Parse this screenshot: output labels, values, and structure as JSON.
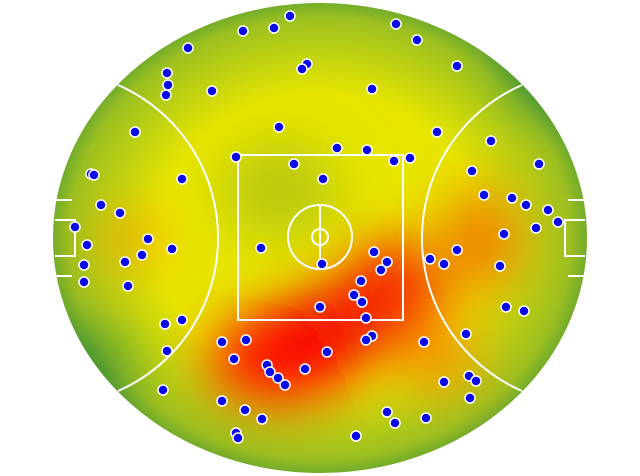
{
  "chart_data": {
    "type": "scatter",
    "xlim": [
      -320,
      320
    ],
    "ylim": [
      -238,
      238
    ],
    "point_color": "#0a0ae6",
    "series": [
      {
        "name": null,
        "x": [
          -30,
          -77,
          -46,
          76,
          97,
          -132,
          -153,
          -13,
          -18,
          -152,
          -154,
          -108,
          52,
          137,
          -185,
          -41,
          117,
          171,
          17,
          47,
          -84,
          -26,
          74,
          90,
          219,
          -229,
          -226,
          -138,
          3,
          152,
          164,
          -219,
          -200,
          192,
          206,
          228,
          238,
          216,
          -245,
          -172,
          -233,
          -148,
          -59,
          184,
          137,
          54,
          -178,
          -195,
          -236,
          2,
          67,
          61,
          110,
          124,
          180,
          -236,
          -192,
          41,
          34,
          42,
          0,
          186,
          204,
          46,
          -155,
          -138,
          146,
          -98,
          -74,
          52,
          46,
          104,
          7,
          -153,
          -86,
          -53,
          -15,
          -50,
          -42,
          -35,
          149,
          156,
          124,
          -157,
          150,
          -98,
          -75,
          -58,
          67,
          75,
          106,
          -84,
          -82,
          36
        ],
        "y": [
          222,
          207,
          210,
          214,
          198,
          190,
          165,
          174,
          169,
          153,
          143,
          147,
          149,
          172,
          106,
          111,
          106,
          97,
          90,
          88,
          81,
          74,
          77,
          80,
          74,
          64,
          63,
          59,
          59,
          67,
          43,
          33,
          25,
          40,
          33,
          28,
          16,
          10,
          11,
          -1,
          -7,
          -11,
          -10,
          4,
          -12,
          -14,
          -17,
          -24,
          -27,
          -26,
          -24,
          -32,
          -21,
          -26,
          -28,
          -44,
          -48,
          -43,
          -57,
          -64,
          -69,
          -69,
          -73,
          -80,
          -86,
          -82,
          -96,
          -104,
          -102,
          -98,
          -102,
          -104,
          -114,
          -113,
          -121,
          -127,
          -131,
          -134,
          -140,
          -147,
          -138,
          -143,
          -144,
          -152,
          -160,
          -163,
          -172,
          -181,
          -174,
          -185,
          -180,
          -195,
          -200,
          -198
        ]
      }
    ]
  }
}
